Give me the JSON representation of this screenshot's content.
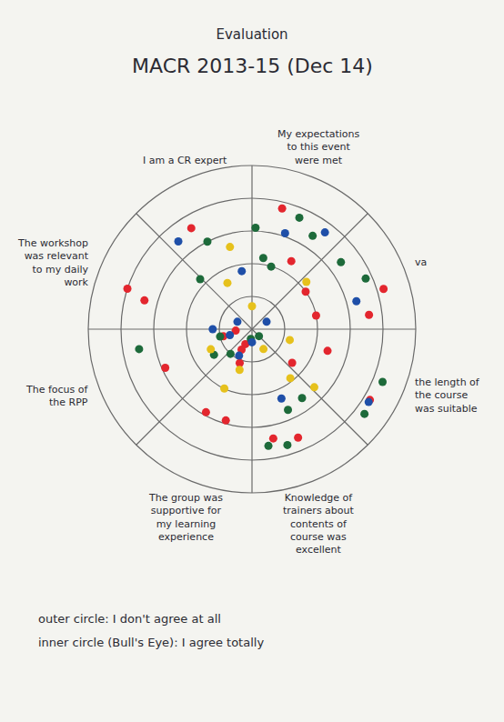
{
  "chart_data": {
    "type": "scatterpolar",
    "title": "Evaluation",
    "subtitle": "MACR 2013-15 (Dec 14)",
    "sectors": [
      "My expectations to this event were met",
      "va",
      "the length of the course was suitable",
      "Knowledge of trainers about contents of course was excellent",
      "The group was supportive for my learning experience",
      "The focus of the RPP",
      "The workshop was relevant to my daily work",
      "I am a CR expert"
    ],
    "annotations": [
      "outer circle: I don't agree at all",
      "inner circle (Bull's Eye): I agree totally"
    ],
    "rlim": [
      0,
      5
    ],
    "rticks": [
      1,
      2,
      3,
      4,
      5
    ],
    "thetaticks": [
      0,
      45,
      90,
      135,
      180,
      225,
      270,
      315
    ],
    "grid": true,
    "tick_labels": false,
    "marker": "circle",
    "series": [
      {
        "color": "#e3262e",
        "theta": [
          14,
          329,
          288,
          285,
          246,
          256,
          200,
          204,
          209,
          196,
          130,
          78,
          106,
          83,
          121,
          73,
          157,
          169,
          30,
          55,
          265,
          207
        ],
        "values": [
          3.8,
          3.6,
          4.0,
          3.4,
          2.9,
          0.9,
          1.1,
          0.5,
          2.9,
          2.9,
          1.6,
          2.0,
          2.4,
          3.6,
          4.2,
          4.2,
          3.6,
          3.4,
          2.4,
          2.0,
          0.5,
          0.7
        ]
      },
      {
        "color": "#1d6a3a",
        "theta": [
          2,
          333,
          9,
          17,
          23,
          33,
          53,
          66,
          260,
          236,
          221,
          257,
          187,
          135,
          144,
          156,
          172,
          163,
          112,
          127,
          314
        ],
        "values": [
          3.1,
          3.0,
          2.2,
          2.0,
          3.7,
          3.4,
          3.4,
          3.8,
          3.5,
          1.4,
          1.0,
          1.0,
          0.3,
          0.3,
          2.6,
          2.7,
          3.6,
          3.7,
          4.3,
          4.3,
          2.2
        ]
      },
      {
        "color": "#1f4fa8",
        "theta": [
          320,
          19,
          350,
          75,
          37,
          270,
          255,
          297,
          180,
          206,
          63,
          157,
          122
        ],
        "values": [
          3.5,
          3.1,
          1.8,
          3.3,
          3.7,
          1.2,
          0.7,
          0.5,
          0.4,
          0.9,
          0.5,
          2.3,
          4.2
        ]
      },
      {
        "color": "#e6c11c",
        "theta": [
          345,
          332,
          49,
          0,
          244,
          197,
          205,
          142,
          133,
          106,
          150
        ],
        "values": [
          2.6,
          1.6,
          2.2,
          0.7,
          1.4,
          1.3,
          2.0,
          1.9,
          2.6,
          1.2,
          0.7
        ]
      }
    ]
  }
}
